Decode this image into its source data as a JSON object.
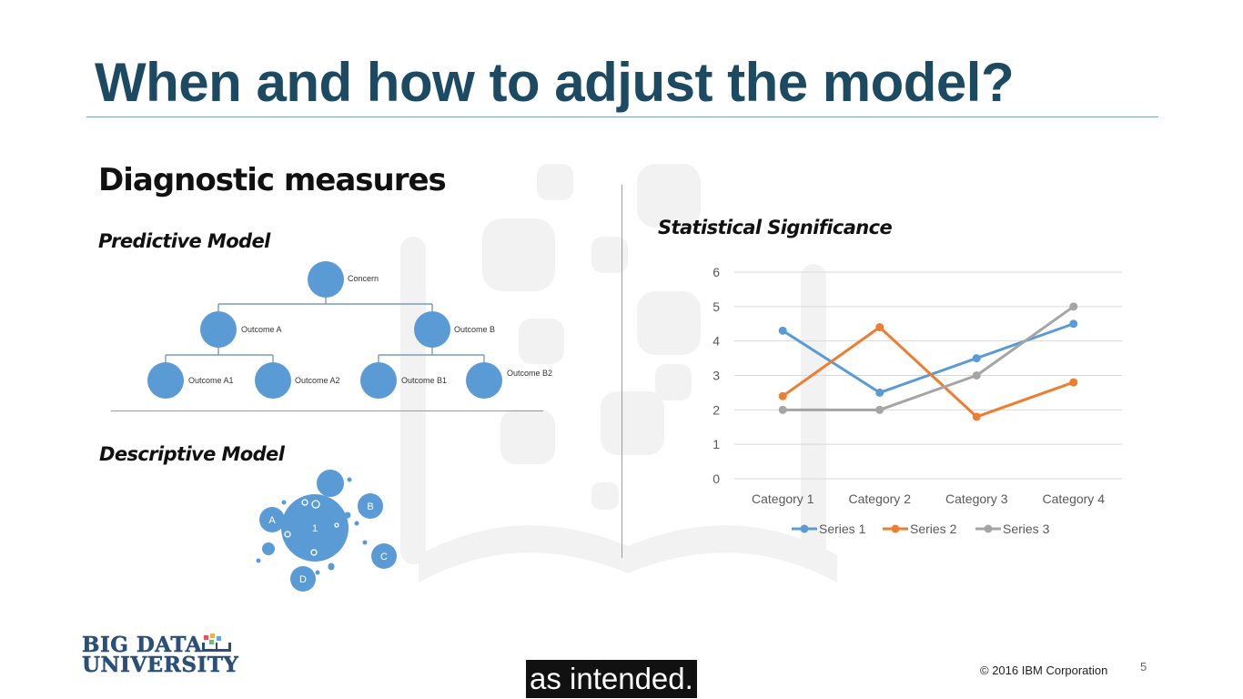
{
  "slide": {
    "title": "When and how to adjust the model?",
    "section_heading": "Diagnostic measures",
    "predictive_label": "Predictive Model",
    "descriptive_label": "Descriptive Model",
    "stat_label": "Statistical Significance"
  },
  "tree": {
    "root": "Concern",
    "level1": [
      "Outcome A",
      "Outcome B"
    ],
    "level2": [
      "Outcome A1",
      "Outcome A2",
      "Outcome B1",
      "Outcome B2"
    ]
  },
  "bubbles": {
    "center": "1",
    "satellites": [
      "A",
      "B",
      "C",
      "D"
    ]
  },
  "chart_data": {
    "type": "line",
    "categories": [
      "Category 1",
      "Category 2",
      "Category 3",
      "Category 4"
    ],
    "series": [
      {
        "name": "Series 1",
        "color": "#5b9bd5",
        "values": [
          4.3,
          2.5,
          3.5,
          4.5
        ]
      },
      {
        "name": "Series 2",
        "color": "#ed7d31",
        "values": [
          2.4,
          4.4,
          1.8,
          2.8
        ]
      },
      {
        "name": "Series 3",
        "color": "#a5a5a5",
        "values": [
          2.0,
          2.0,
          3.0,
          5.0
        ]
      }
    ],
    "ylim": [
      0,
      6
    ],
    "yticks": [
      "0",
      "1",
      "2",
      "3",
      "4",
      "5",
      "6"
    ],
    "grid": true,
    "legend": "bottom"
  },
  "footer": {
    "logo_line1": "BIG DATA",
    "logo_line2": "UNIVERSITY",
    "caption": "as intended.",
    "copyright": "© 2016 IBM Corporation",
    "page_number": "5"
  },
  "colors": {
    "title": "#1b4a62",
    "node": "#5b9bd5",
    "rule": "#7aa5b5"
  }
}
